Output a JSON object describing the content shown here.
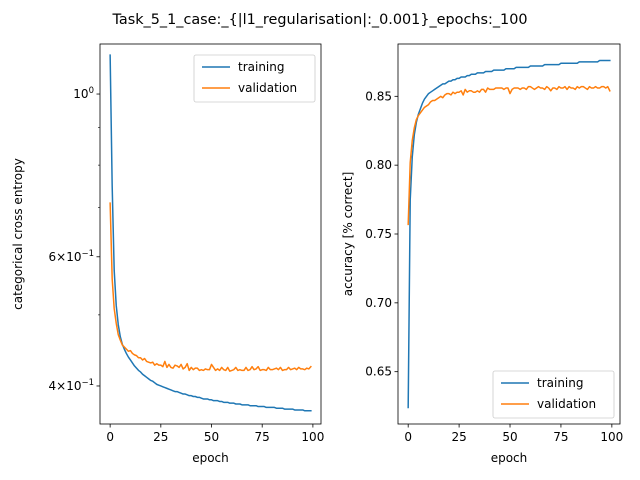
{
  "title": "Task_5_1_case:_{|l1_regularisation|:_0.001}_epochs:_100",
  "chart_data": [
    {
      "type": "line",
      "xlabel": "epoch",
      "ylabel": "categorical cross entropy",
      "yscale": "log",
      "xlim": [
        -5,
        104
      ],
      "ylim": [
        0.355,
        1.17
      ],
      "xticks": [
        0,
        25,
        50,
        75,
        100
      ],
      "yticks": [
        {
          "value": 1.0,
          "label": "10^0",
          "base": "10",
          "exp": "0",
          "coef": ""
        },
        {
          "value": 0.6,
          "label": "6×10^-1",
          "base": "10",
          "exp": "−1",
          "coef": "6"
        },
        {
          "value": 0.4,
          "label": "4×10^-1",
          "base": "10",
          "exp": "−1",
          "coef": "4"
        }
      ],
      "minor_yticks": [
        0.5,
        0.7,
        0.8,
        0.9
      ],
      "legend": "top-right",
      "series": [
        {
          "name": "training",
          "color": "#1f77b4",
          "x": [
            0,
            1,
            2,
            3,
            4,
            5,
            6,
            7,
            8,
            9,
            10,
            11,
            12,
            13,
            14,
            15,
            16,
            17,
            18,
            19,
            20,
            21,
            22,
            23,
            24,
            25,
            26,
            27,
            28,
            29,
            30,
            31,
            32,
            33,
            34,
            35,
            36,
            37,
            38,
            39,
            40,
            41,
            42,
            43,
            44,
            45,
            46,
            47,
            48,
            49,
            50,
            51,
            52,
            53,
            54,
            55,
            56,
            57,
            58,
            59,
            60,
            61,
            62,
            63,
            64,
            65,
            66,
            67,
            68,
            69,
            70,
            71,
            72,
            73,
            74,
            75,
            76,
            77,
            78,
            79,
            80,
            81,
            82,
            83,
            84,
            85,
            86,
            87,
            88,
            89,
            90,
            91,
            92,
            93,
            94,
            95,
            96,
            97,
            98,
            99
          ],
          "y": [
            1.13,
            0.75,
            0.575,
            0.515,
            0.485,
            0.467,
            0.456,
            0.449,
            0.443,
            0.438,
            0.434,
            0.43,
            0.426,
            0.423,
            0.42,
            0.418,
            0.415,
            0.413,
            0.411,
            0.409,
            0.407,
            0.406,
            0.404,
            0.402,
            0.401,
            0.4,
            0.399,
            0.398,
            0.397,
            0.396,
            0.395,
            0.394,
            0.393,
            0.393,
            0.392,
            0.391,
            0.39,
            0.39,
            0.389,
            0.388,
            0.388,
            0.387,
            0.387,
            0.386,
            0.386,
            0.385,
            0.384,
            0.384,
            0.384,
            0.383,
            0.383,
            0.382,
            0.382,
            0.382,
            0.381,
            0.381,
            0.38,
            0.38,
            0.38,
            0.379,
            0.379,
            0.379,
            0.378,
            0.378,
            0.378,
            0.377,
            0.377,
            0.377,
            0.377,
            0.376,
            0.376,
            0.376,
            0.376,
            0.375,
            0.375,
            0.375,
            0.375,
            0.374,
            0.374,
            0.374,
            0.374,
            0.374,
            0.373,
            0.373,
            0.373,
            0.373,
            0.372,
            0.372,
            0.372,
            0.372,
            0.372,
            0.371,
            0.371,
            0.371,
            0.371,
            0.371,
            0.37,
            0.37,
            0.37,
            0.37
          ]
        },
        {
          "name": "validation",
          "color": "#ff7f0e",
          "x": [
            0,
            1,
            2,
            3,
            4,
            5,
            6,
            7,
            8,
            9,
            10,
            11,
            12,
            13,
            14,
            15,
            16,
            17,
            18,
            19,
            20,
            21,
            22,
            23,
            24,
            25,
            26,
            27,
            28,
            29,
            30,
            31,
            32,
            33,
            34,
            35,
            36,
            37,
            38,
            39,
            40,
            41,
            42,
            43,
            44,
            45,
            46,
            47,
            48,
            49,
            50,
            51,
            52,
            53,
            54,
            55,
            56,
            57,
            58,
            59,
            60,
            61,
            62,
            63,
            64,
            65,
            66,
            67,
            68,
            69,
            70,
            71,
            72,
            73,
            74,
            75,
            76,
            77,
            78,
            79,
            80,
            81,
            82,
            83,
            84,
            85,
            86,
            87,
            88,
            89,
            90,
            91,
            92,
            93,
            94,
            95,
            96,
            97,
            98,
            99
          ],
          "y": [
            0.71,
            0.56,
            0.51,
            0.487,
            0.47,
            0.462,
            0.455,
            0.452,
            0.449,
            0.446,
            0.447,
            0.443,
            0.441,
            0.44,
            0.437,
            0.437,
            0.434,
            0.436,
            0.432,
            0.431,
            0.43,
            0.431,
            0.427,
            0.429,
            0.427,
            0.427,
            0.425,
            0.432,
            0.424,
            0.428,
            0.424,
            0.423,
            0.427,
            0.426,
            0.424,
            0.428,
            0.422,
            0.424,
            0.429,
            0.42,
            0.424,
            0.421,
            0.423,
            0.423,
            0.42,
            0.421,
            0.42,
            0.422,
            0.421,
            0.421,
            0.428,
            0.424,
            0.42,
            0.422,
            0.42,
            0.424,
            0.421,
            0.42,
            0.424,
            0.419,
            0.42,
            0.421,
            0.424,
            0.42,
            0.421,
            0.42,
            0.42,
            0.424,
            0.42,
            0.421,
            0.425,
            0.421,
            0.422,
            0.425,
            0.42,
            0.421,
            0.421,
            0.42,
            0.424,
            0.421,
            0.421,
            0.422,
            0.423,
            0.421,
            0.424,
            0.42,
            0.421,
            0.421,
            0.424,
            0.421,
            0.422,
            0.423,
            0.421,
            0.424,
            0.422,
            0.422,
            0.421,
            0.423,
            0.422,
            0.425
          ]
        }
      ]
    },
    {
      "type": "line",
      "xlabel": "epoch",
      "ylabel": "accuracy [% correct]",
      "yscale": "linear",
      "xlim": [
        -5,
        104
      ],
      "ylim": [
        0.612,
        0.888
      ],
      "xticks": [
        0,
        25,
        50,
        75,
        100
      ],
      "yticks": [
        0.65,
        0.7,
        0.75,
        0.8,
        0.85
      ],
      "ytick_labels": [
        "0.65",
        "0.70",
        "0.75",
        "0.80",
        "0.85"
      ],
      "legend": "bottom-right",
      "series": [
        {
          "name": "training",
          "color": "#1f77b4",
          "x": [
            0,
            1,
            2,
            3,
            4,
            5,
            6,
            7,
            8,
            9,
            10,
            11,
            12,
            13,
            14,
            15,
            16,
            17,
            18,
            19,
            20,
            21,
            22,
            23,
            24,
            25,
            26,
            27,
            28,
            29,
            30,
            31,
            32,
            33,
            34,
            35,
            36,
            37,
            38,
            39,
            40,
            41,
            42,
            43,
            44,
            45,
            46,
            47,
            48,
            49,
            50,
            51,
            52,
            53,
            54,
            55,
            56,
            57,
            58,
            59,
            60,
            61,
            62,
            63,
            64,
            65,
            66,
            67,
            68,
            69,
            70,
            71,
            72,
            73,
            74,
            75,
            76,
            77,
            78,
            79,
            80,
            81,
            82,
            83,
            84,
            85,
            86,
            87,
            88,
            89,
            90,
            91,
            92,
            93,
            94,
            95,
            96,
            97,
            98,
            99
          ],
          "y": [
            0.624,
            0.775,
            0.806,
            0.822,
            0.831,
            0.837,
            0.841,
            0.845,
            0.848,
            0.85,
            0.852,
            0.853,
            0.854,
            0.855,
            0.856,
            0.857,
            0.858,
            0.859,
            0.859,
            0.86,
            0.861,
            0.861,
            0.862,
            0.862,
            0.863,
            0.863,
            0.864,
            0.864,
            0.864,
            0.865,
            0.865,
            0.866,
            0.866,
            0.866,
            0.867,
            0.867,
            0.867,
            0.867,
            0.868,
            0.868,
            0.868,
            0.868,
            0.869,
            0.869,
            0.869,
            0.869,
            0.869,
            0.869,
            0.87,
            0.87,
            0.87,
            0.87,
            0.87,
            0.871,
            0.871,
            0.871,
            0.871,
            0.871,
            0.871,
            0.871,
            0.872,
            0.872,
            0.872,
            0.872,
            0.872,
            0.872,
            0.872,
            0.873,
            0.873,
            0.873,
            0.873,
            0.873,
            0.873,
            0.873,
            0.873,
            0.874,
            0.874,
            0.874,
            0.874,
            0.874,
            0.874,
            0.874,
            0.874,
            0.874,
            0.875,
            0.875,
            0.875,
            0.875,
            0.875,
            0.875,
            0.875,
            0.875,
            0.875,
            0.875,
            0.876,
            0.876,
            0.876,
            0.876,
            0.876,
            0.876
          ]
        },
        {
          "name": "validation",
          "color": "#ff7f0e",
          "x": [
            0,
            1,
            2,
            3,
            4,
            5,
            6,
            7,
            8,
            9,
            10,
            11,
            12,
            13,
            14,
            15,
            16,
            17,
            18,
            19,
            20,
            21,
            22,
            23,
            24,
            25,
            26,
            27,
            28,
            29,
            30,
            31,
            32,
            33,
            34,
            35,
            36,
            37,
            38,
            39,
            40,
            41,
            42,
            43,
            44,
            45,
            46,
            47,
            48,
            49,
            50,
            51,
            52,
            53,
            54,
            55,
            56,
            57,
            58,
            59,
            60,
            61,
            62,
            63,
            64,
            65,
            66,
            67,
            68,
            69,
            70,
            71,
            72,
            73,
            74,
            75,
            76,
            77,
            78,
            79,
            80,
            81,
            82,
            83,
            84,
            85,
            86,
            87,
            88,
            89,
            90,
            91,
            92,
            93,
            94,
            95,
            96,
            97,
            98,
            99
          ],
          "y": [
            0.757,
            0.802,
            0.818,
            0.827,
            0.833,
            0.836,
            0.838,
            0.84,
            0.842,
            0.843,
            0.844,
            0.846,
            0.847,
            0.847,
            0.848,
            0.849,
            0.85,
            0.849,
            0.851,
            0.852,
            0.852,
            0.851,
            0.853,
            0.852,
            0.853,
            0.853,
            0.854,
            0.851,
            0.855,
            0.853,
            0.854,
            0.854,
            0.853,
            0.853,
            0.854,
            0.853,
            0.855,
            0.855,
            0.853,
            0.856,
            0.855,
            0.855,
            0.855,
            0.856,
            0.856,
            0.856,
            0.856,
            0.855,
            0.856,
            0.856,
            0.852,
            0.855,
            0.856,
            0.856,
            0.856,
            0.855,
            0.856,
            0.856,
            0.855,
            0.857,
            0.857,
            0.856,
            0.855,
            0.856,
            0.857,
            0.856,
            0.856,
            0.855,
            0.857,
            0.856,
            0.854,
            0.856,
            0.856,
            0.855,
            0.857,
            0.856,
            0.856,
            0.857,
            0.855,
            0.857,
            0.856,
            0.856,
            0.855,
            0.857,
            0.856,
            0.857,
            0.857,
            0.856,
            0.855,
            0.857,
            0.856,
            0.856,
            0.857,
            0.856,
            0.856,
            0.857,
            0.857,
            0.856,
            0.857,
            0.854
          ]
        }
      ]
    }
  ]
}
